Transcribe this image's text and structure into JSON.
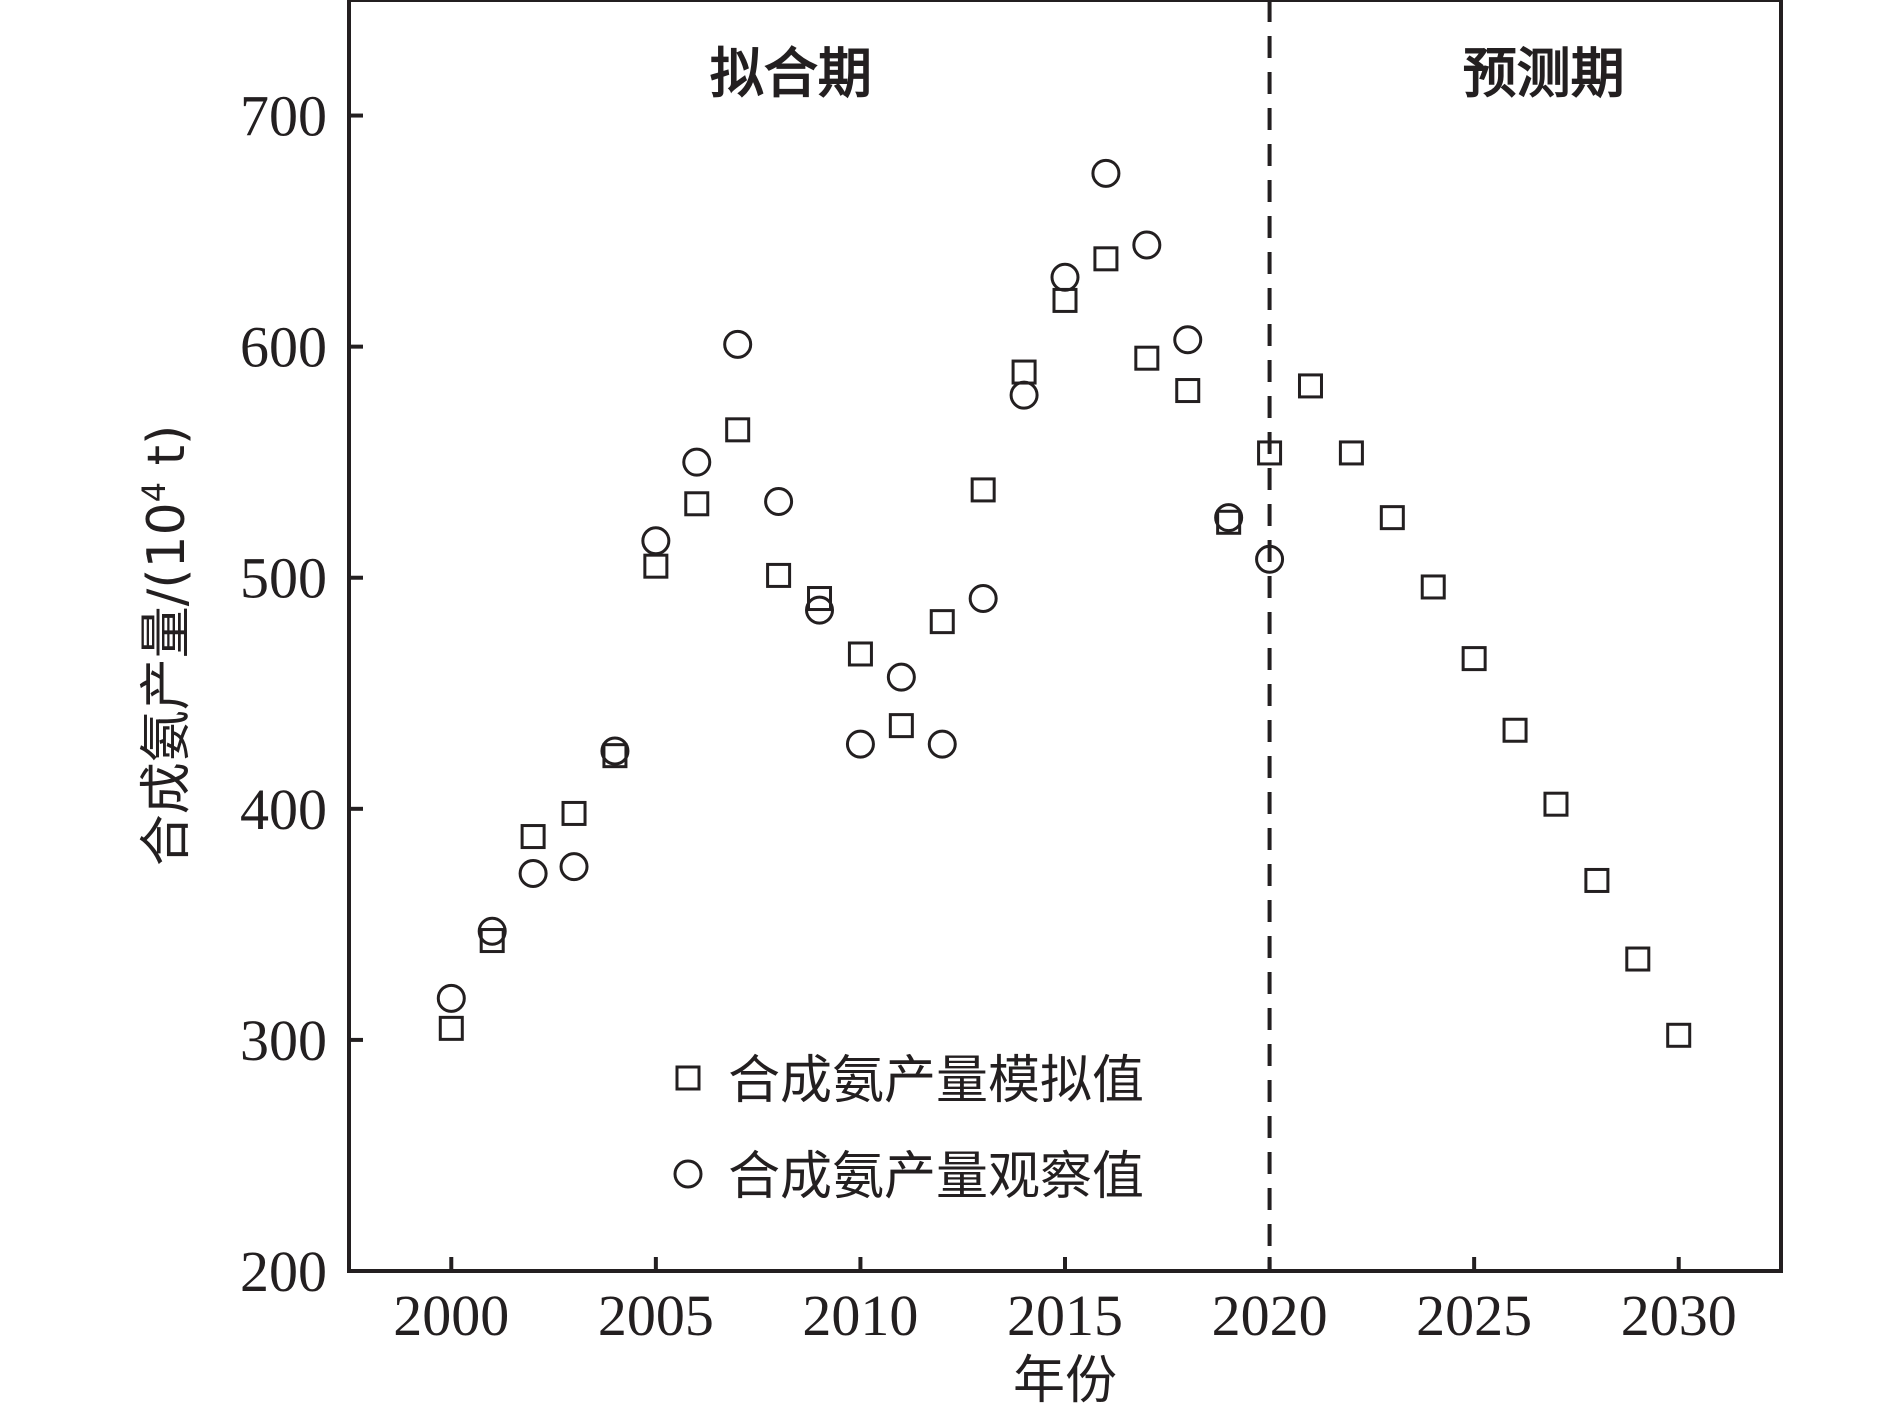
{
  "chart_data": {
    "type": "scatter",
    "xlabel": "年份",
    "ylabel": "合成氨产量/(10",
    "ylabel_sup": "4",
    "ylabel_tail": " t)",
    "xlim": [
      1997.5,
      2032.5
    ],
    "ylim": [
      200,
      750
    ],
    "xticks": [
      2000,
      2005,
      2010,
      2015,
      2020,
      2025,
      2030
    ],
    "yticks": [
      200,
      300,
      400,
      500,
      600,
      700
    ],
    "divider_x": 2020,
    "regions": [
      {
        "label": "拟合期",
        "x": 2008.3
      },
      {
        "label": "预测期",
        "x": 2026.7
      }
    ],
    "legend_position": "bottom-left",
    "series": [
      {
        "name": "合成氨产量模拟值",
        "marker": "square",
        "x": [
          2000,
          2001,
          2002,
          2003,
          2004,
          2005,
          2006,
          2007,
          2008,
          2009,
          2010,
          2011,
          2012,
          2013,
          2014,
          2015,
          2016,
          2017,
          2018,
          2019,
          2020,
          2021,
          2022,
          2023,
          2024,
          2025,
          2026,
          2027,
          2028,
          2029,
          2030
        ],
        "y": [
          305,
          343,
          388,
          398,
          423,
          505,
          532,
          564,
          501,
          491,
          467,
          436,
          481,
          538,
          589,
          620,
          638,
          595,
          581,
          524,
          554,
          583,
          554,
          526,
          496,
          465,
          434,
          402,
          369,
          335,
          302
        ]
      },
      {
        "name": "合成氨产量观察值",
        "marker": "circle",
        "x": [
          2000,
          2001,
          2002,
          2003,
          2004,
          2005,
          2006,
          2007,
          2008,
          2009,
          2010,
          2011,
          2012,
          2013,
          2014,
          2015,
          2016,
          2017,
          2018,
          2019,
          2020
        ],
        "y": [
          318,
          347,
          372,
          375,
          425,
          516,
          550,
          601,
          533,
          486,
          428,
          457,
          428,
          491,
          579,
          630,
          675,
          644,
          603,
          526,
          508
        ]
      }
    ]
  },
  "colors": {
    "ink": "#231f20",
    "background": "#ffffff"
  }
}
